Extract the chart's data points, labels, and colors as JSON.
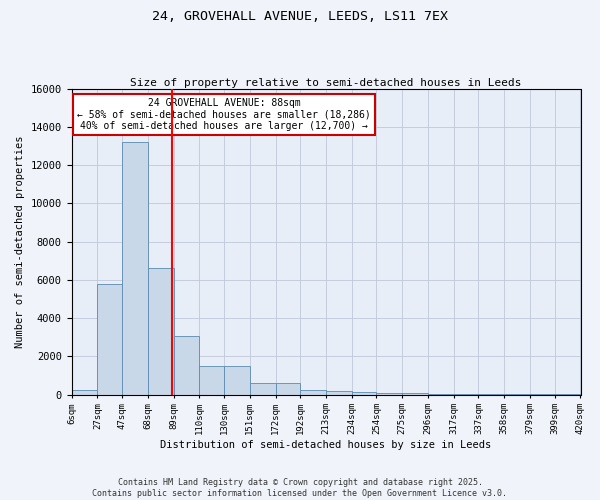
{
  "title_line1": "24, GROVEHALL AVENUE, LEEDS, LS11 7EX",
  "title_line2": "Size of property relative to semi-detached houses in Leeds",
  "xlabel": "Distribution of semi-detached houses by size in Leeds",
  "ylabel": "Number of semi-detached properties",
  "bin_labels": [
    "6sqm",
    "27sqm",
    "47sqm",
    "68sqm",
    "89sqm",
    "110sqm",
    "130sqm",
    "151sqm",
    "172sqm",
    "192sqm",
    "213sqm",
    "234sqm",
    "254sqm",
    "275sqm",
    "296sqm",
    "317sqm",
    "337sqm",
    "358sqm",
    "379sqm",
    "399sqm",
    "420sqm"
  ],
  "bin_edges": [
    6,
    27,
    47,
    68,
    89,
    110,
    130,
    151,
    172,
    192,
    213,
    234,
    254,
    275,
    296,
    317,
    337,
    358,
    379,
    399,
    420
  ],
  "bar_heights": [
    250,
    5800,
    13200,
    6600,
    3050,
    1480,
    1480,
    620,
    620,
    250,
    200,
    130,
    80,
    60,
    50,
    40,
    30,
    20,
    10,
    5
  ],
  "bar_color": "#c8d8e8",
  "bar_edge_color": "#5a8ab0",
  "red_line_x": 88,
  "annotation_title": "24 GROVEHALL AVENUE: 88sqm",
  "annotation_line1": "← 58% of semi-detached houses are smaller (18,286)",
  "annotation_line2": "40% of semi-detached houses are larger (12,700) →",
  "annotation_box_color": "#ffffff",
  "annotation_box_edge": "#cc0000",
  "ylim": [
    0,
    16000
  ],
  "yticks": [
    0,
    2000,
    4000,
    6000,
    8000,
    10000,
    12000,
    14000,
    16000
  ],
  "grid_color": "#c0c8d8",
  "bg_color": "#e8eef8",
  "fig_bg_color": "#f0f4fa",
  "footer_line1": "Contains HM Land Registry data © Crown copyright and database right 2025.",
  "footer_line2": "Contains public sector information licensed under the Open Government Licence v3.0."
}
